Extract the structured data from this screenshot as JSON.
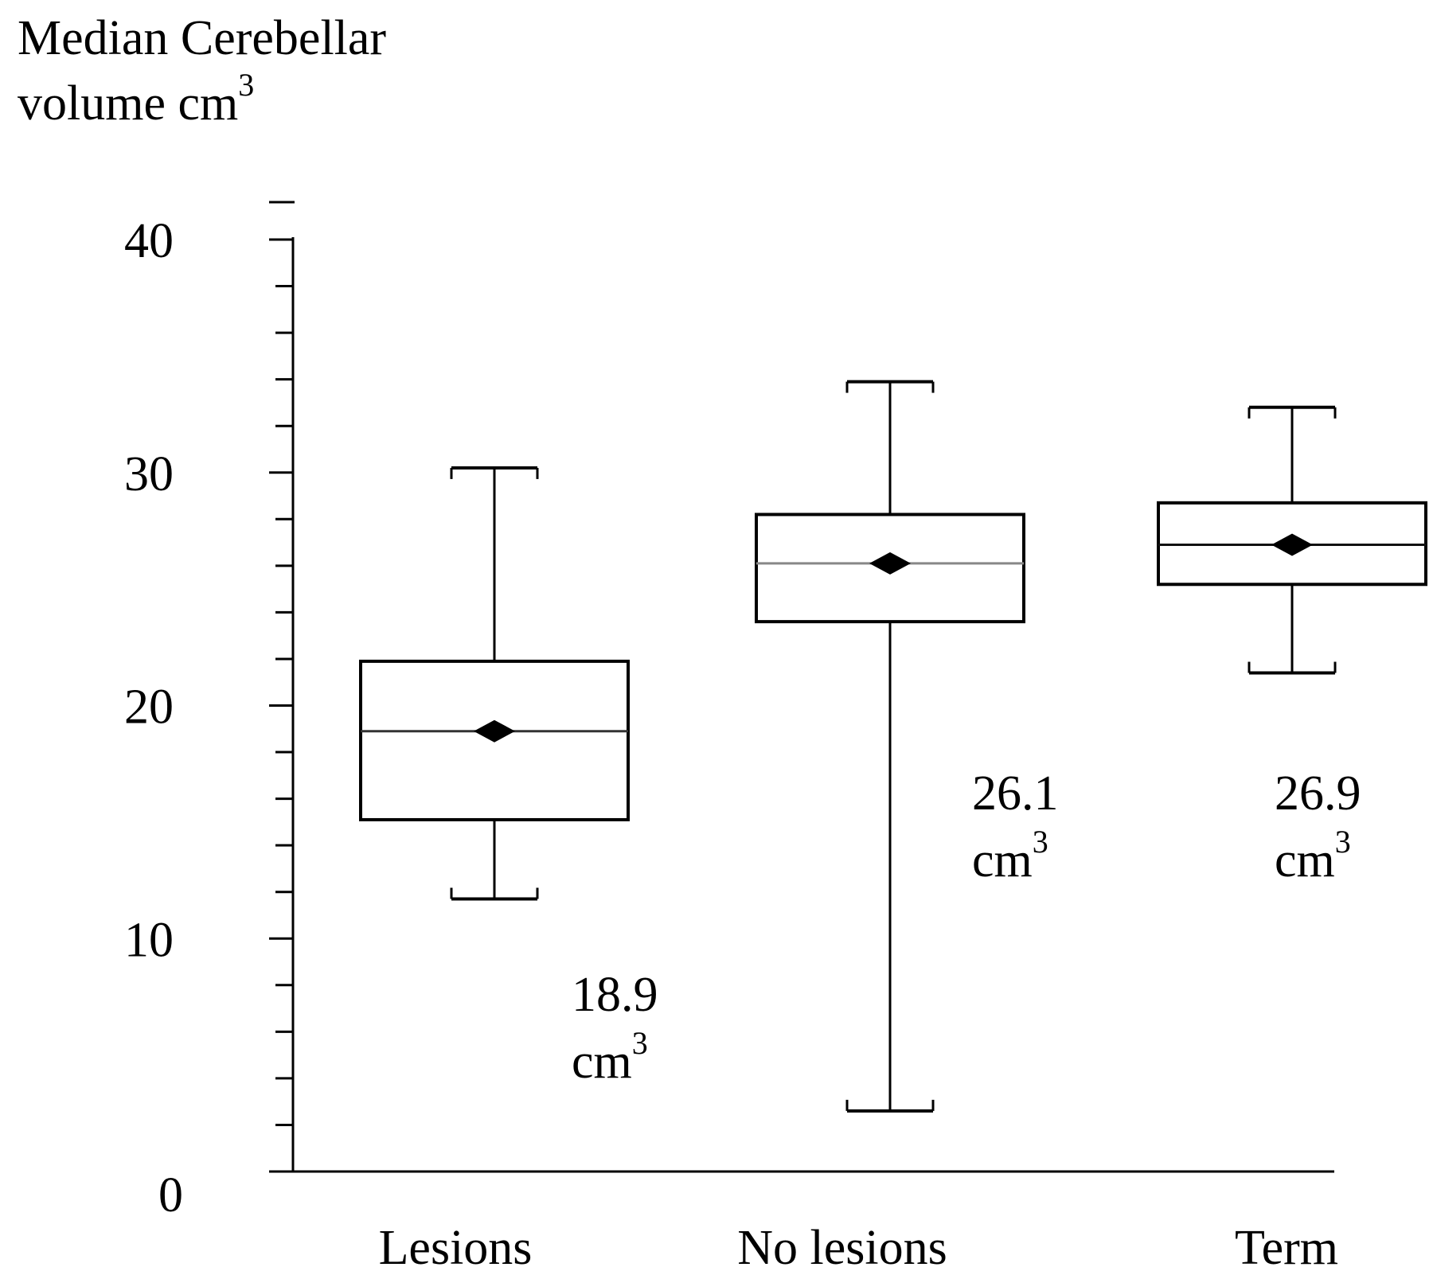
{
  "chart_data": {
    "type": "box",
    "ylabel_line1": "Median Cerebellar",
    "ylabel_line2": "volume cm",
    "ylabel_sup": "3",
    "ylim": [
      0,
      40
    ],
    "yticks": [
      0,
      10,
      20,
      30,
      40
    ],
    "ytick_labels": [
      "0",
      "10",
      "20",
      "30",
      "40"
    ],
    "minor_tick_step": 2,
    "categories": [
      "Lesions",
      "No lesions",
      "Term"
    ],
    "boxes": [
      {
        "name": "Lesions",
        "whisker_low": 11.7,
        "q1": 15.1,
        "median": 18.9,
        "q3": 21.9,
        "whisker_high": 30.2
      },
      {
        "name": "No lesions",
        "whisker_low": 2.6,
        "q1": 23.6,
        "median": 26.1,
        "q3": 28.2,
        "whisker_high": 33.9
      },
      {
        "name": "Term",
        "whisker_low": 21.4,
        "q1": 25.2,
        "median": 26.9,
        "q3": 28.7,
        "whisker_high": 32.8
      }
    ],
    "annotations": [
      {
        "value": "18.9",
        "unit": "cm",
        "sup": "3"
      },
      {
        "value": "26.1",
        "unit": "cm",
        "sup": "3"
      },
      {
        "value": "26.9",
        "unit": "cm",
        "sup": "3"
      }
    ],
    "grid": false,
    "colors": {
      "line": "#000000",
      "median_lesions": "#333333",
      "median_no_lesions": "#888888",
      "median_term": "#111111"
    }
  }
}
